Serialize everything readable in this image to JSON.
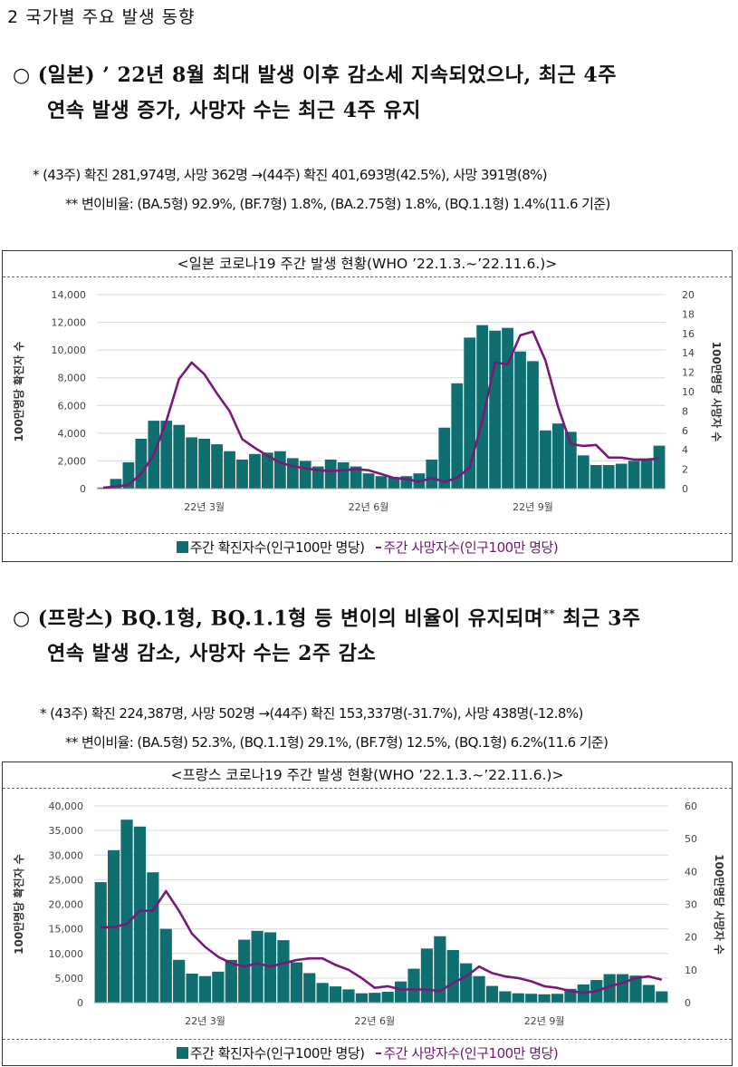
{
  "section_title": "2  국가별 주요 발생 동향",
  "japan": {
    "circle": "○",
    "headline_l1_a": "(일본) ’ 22년 8월 최대 발생 이후 감소세 지속되었으나, ",
    "headline_l1_b": "최근 4주",
    "headline_l2": "연속 발생 증가, 사망자 수는 최근 4주 유지",
    "note1": "* (43주) 확진 281,974명, 사망 362명 →(44주) 확진 401,693명(42.5%), 사망 391명(8%)",
    "note2": "** 변이비율: (BA.5형) 92.9%, (BF.7형) 1.8%, (BA.2.75형) 1.8%, (BQ.1.1형) 1.4%(11.6 기준)",
    "chart_title": "<일본 코로나19 주간 발생 현황(WHO ’22.1.3.~’22.11.6.)>",
    "legend_cases": "주간 확진자수(인구100만 명당)",
    "legend_deaths": "주간 사망자수(인구100만 명당)"
  },
  "france": {
    "circle": "○",
    "headline_l1_a": "(프랑스) BQ.1형, BQ.1.1형 등 변이의 비율이 유지되며",
    "headline_sup": "**",
    "headline_l1_b": " 최근 3주",
    "headline_l2": "연속 발생 감소, 사망자 수는 2주 감소",
    "note1": "* (43주) 확진 224,387명, 사망 502명 →(44주) 확진 153,337명(-31.7%), 사망 438명(-12.8%)",
    "note2": "** 변이비율: (BA.5형) 52.3%, (BQ.1.1형) 29.1%, (BF.7형) 12.5%, (BQ.1형) 6.2%(11.6 기준)",
    "chart_title": "<프랑스 코로나19 주간 발생 현황(WHO ’22.1.3.~’22.11.6.)>",
    "legend_cases": "주간 확진자수(인구100만 명당)",
    "legend_deaths": "주간 사망자수(인구100만 명당)"
  },
  "colors": {
    "bar": "#0e6e70",
    "line": "#7a1a78",
    "grid": "#d9d9d9"
  },
  "chart_data": [
    {
      "type": "bar",
      "title": "일본 코로나19 주간 발생 현황",
      "ylabel": "100만명당 확진자 수",
      "y2label": "100만명당 사망자 수",
      "ylim": [
        0,
        14000
      ],
      "yticks": [
        "0",
        "2,000",
        "4,000",
        "6,000",
        "8,000",
        "10,000",
        "12,000",
        "14,000"
      ],
      "y2lim": [
        0,
        20
      ],
      "y2ticks": [
        "0",
        "2",
        "4",
        "6",
        "8",
        "10",
        "12",
        "14",
        "16",
        "18",
        "20"
      ],
      "xticks": [
        {
          "label": "22년 3월",
          "index": 8
        },
        {
          "label": "22년 6월",
          "index": 21
        },
        {
          "label": "22년 9월",
          "index": 34
        }
      ],
      "series": [
        {
          "name": "주간 확진자수(인구100만 명당)",
          "kind": "bar",
          "values": [
            80,
            700,
            1900,
            3600,
            4900,
            4900,
            4600,
            3700,
            3600,
            3200,
            2700,
            2100,
            2500,
            2600,
            2700,
            2200,
            2000,
            1600,
            2100,
            1900,
            1600,
            1100,
            900,
            800,
            900,
            1100,
            2100,
            4400,
            7600,
            10900,
            11800,
            11400,
            11600,
            9900,
            9200,
            4200,
            4700,
            4100,
            2400,
            1700,
            1700,
            1800,
            2000,
            2100,
            3100
          ]
        },
        {
          "name": "주간 사망자수(인구100만 명당)",
          "kind": "line",
          "values": [
            0.1,
            0.2,
            0.4,
            1.5,
            3.5,
            7,
            11.3,
            13,
            11.8,
            9.8,
            8,
            5.1,
            4.2,
            3.4,
            2.7,
            2.3,
            2.1,
            1.9,
            1.8,
            1.9,
            2,
            1.9,
            1.5,
            1.1,
            1,
            0.7,
            1.1,
            0.7,
            1.1,
            2.2,
            7,
            13,
            12.8,
            15.8,
            16.2,
            13.2,
            8.4,
            4.6,
            4.4,
            4.5,
            3.2,
            3.2,
            3,
            3,
            3.1
          ]
        }
      ]
    },
    {
      "type": "bar",
      "title": "프랑스 코로나19 주간 발생 현황",
      "ylabel": "100만명당 확진자 수",
      "y2label": "100만명당 사망자 수",
      "ylim": [
        0,
        40000
      ],
      "yticks": [
        "0",
        "5,000",
        "10,000",
        "15,000",
        "20,000",
        "25,000",
        "30,000",
        "35,000",
        "40,000"
      ],
      "y2lim": [
        0,
        60
      ],
      "y2ticks": [
        "0",
        "10",
        "20",
        "30",
        "40",
        "50",
        "60"
      ],
      "xticks": [
        {
          "label": "22년 3월",
          "index": 8
        },
        {
          "label": "22년 6월",
          "index": 21
        },
        {
          "label": "22년 9월",
          "index": 34
        }
      ],
      "series": [
        {
          "name": "주간 확진자수(인구100만 명당)",
          "kind": "bar",
          "values": [
            24500,
            31000,
            37200,
            35800,
            26500,
            15000,
            8700,
            5900,
            5400,
            6300,
            8700,
            12800,
            14600,
            14300,
            12700,
            8200,
            6000,
            4000,
            3300,
            2700,
            1900,
            2000,
            2200,
            4300,
            6900,
            11000,
            13500,
            10700,
            8000,
            5400,
            3400,
            2300,
            1900,
            1800,
            1700,
            1800,
            2800,
            3700,
            4600,
            5800,
            5800,
            5500,
            3600,
            2300
          ]
        },
        {
          "name": "주간 사망자수(인구100만 명당)",
          "kind": "line",
          "values": [
            23,
            23,
            24,
            28,
            28,
            34,
            28,
            21,
            17,
            14,
            12,
            11,
            12,
            11,
            12,
            13,
            13.5,
            13.5,
            11.5,
            10,
            7.5,
            4.5,
            5,
            4,
            4,
            4,
            3.5,
            6,
            8,
            11,
            9,
            8,
            7.5,
            6.5,
            5,
            4.5,
            3.5,
            3,
            3.5,
            5,
            6,
            7.5,
            8,
            7
          ]
        }
      ]
    }
  ]
}
